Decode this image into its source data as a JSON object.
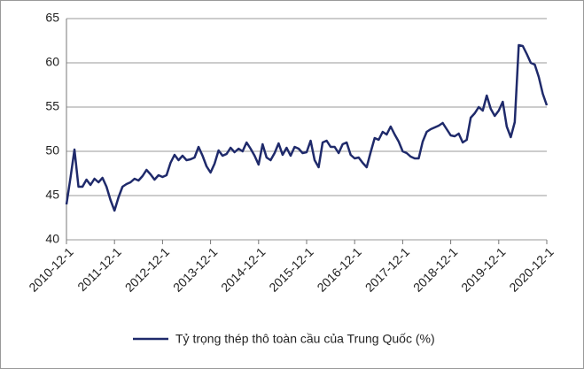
{
  "chart_data": {
    "type": "line",
    "categories": [
      "2010-12-1",
      null,
      null,
      null,
      null,
      null,
      null,
      null,
      null,
      null,
      null,
      null,
      "2011-12-1",
      null,
      null,
      null,
      null,
      null,
      null,
      null,
      null,
      null,
      null,
      null,
      "2012-12-1",
      null,
      null,
      null,
      null,
      null,
      null,
      null,
      null,
      null,
      null,
      null,
      "2013-12-1",
      null,
      null,
      null,
      null,
      null,
      null,
      null,
      null,
      null,
      null,
      null,
      "2014-12-1",
      null,
      null,
      null,
      null,
      null,
      null,
      null,
      null,
      null,
      null,
      null,
      "2015-12-1",
      null,
      null,
      null,
      null,
      null,
      null,
      null,
      null,
      null,
      null,
      null,
      "2016-12-1",
      null,
      null,
      null,
      null,
      null,
      null,
      null,
      null,
      null,
      null,
      null,
      "2017-12-1",
      null,
      null,
      null,
      null,
      null,
      null,
      null,
      null,
      null,
      null,
      null,
      "2018-12-1",
      null,
      null,
      null,
      null,
      null,
      null,
      null,
      null,
      null,
      null,
      null,
      "2019-12-1",
      null,
      null,
      null,
      null,
      null,
      null,
      null,
      null,
      null,
      null,
      null,
      "2020-12-1"
    ],
    "series": [
      {
        "name": "Tỷ trọng thép thô toàn cầu của Trung Quốc (%)",
        "color": "#1f2a6b",
        "values": [
          44,
          47,
          50.2,
          46,
          46,
          46.8,
          46.2,
          46.9,
          46.5,
          47,
          46,
          44.5,
          43.3,
          44.8,
          46,
          46.3,
          46.5,
          46.9,
          46.7,
          47.2,
          47.9,
          47.4,
          46.8,
          47.3,
          47.1,
          47.3,
          48.7,
          49.6,
          49,
          49.5,
          49,
          49.1,
          49.3,
          50.5,
          49.5,
          48.3,
          47.6,
          48.6,
          50.1,
          49.5,
          49.7,
          50.4,
          49.9,
          50.3,
          50,
          51,
          50.3,
          49.5,
          48.5,
          50.8,
          49.3,
          49,
          49.8,
          50.9,
          49.6,
          50.4,
          49.5,
          50.5,
          50.3,
          49.8,
          49.9,
          51.2,
          49,
          48.2,
          51,
          51.2,
          50.5,
          50.5,
          49.8,
          50.8,
          51,
          49.6,
          49.2,
          49.3,
          48.7,
          48.2,
          49.9,
          51.5,
          51.3,
          52.2,
          51.9,
          52.8,
          51.9,
          51.1,
          50,
          49.8,
          49.4,
          49.2,
          49.2,
          51.1,
          52.2,
          52.5,
          52.7,
          52.9,
          53.2,
          52.5,
          51.8,
          51.7,
          52,
          51,
          51.3,
          53.8,
          54.3,
          55,
          54.6,
          56.3,
          54.8,
          54,
          54.6,
          55.6,
          52.8,
          51.6,
          53.3,
          62,
          61.9,
          61,
          60,
          59.8,
          58.4,
          56.5,
          55.2
        ]
      }
    ],
    "ylim": [
      40,
      65
    ],
    "yticks": [
      40,
      45,
      50,
      55,
      60,
      65
    ],
    "grid": true,
    "legend": "bottom"
  }
}
